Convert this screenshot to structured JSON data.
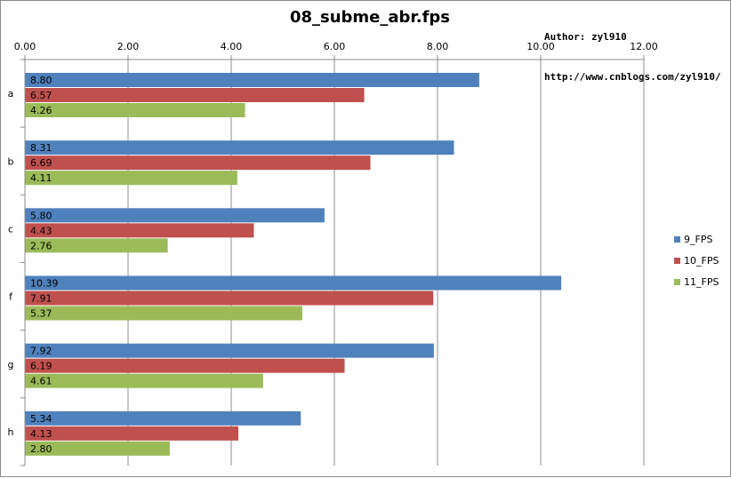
{
  "header": {
    "author": "Author: zyl910",
    "url": "http://www.cnblogs.com/zyl910/"
  },
  "chart_data": {
    "type": "bar",
    "orientation": "horizontal",
    "title": "08_subme_abr.fps",
    "categories": [
      "a",
      "b",
      "c",
      "f",
      "g",
      "h"
    ],
    "series": [
      {
        "name": "9_FPS",
        "color": "#4f81bd",
        "values": [
          8.8,
          8.31,
          5.8,
          10.39,
          7.92,
          5.34
        ]
      },
      {
        "name": "10_FPS",
        "color": "#c0504d",
        "values": [
          6.57,
          6.69,
          4.43,
          7.91,
          6.19,
          4.13
        ]
      },
      {
        "name": "11_FPS",
        "color": "#9bbb59",
        "values": [
          4.26,
          4.11,
          2.76,
          5.37,
          4.61,
          2.8
        ]
      }
    ],
    "value_labels": [
      [
        "8.80",
        "8.31",
        "5.80",
        "10.39",
        "7.92",
        "5.34"
      ],
      [
        "6.57",
        "6.69",
        "4.43",
        "7.91",
        "6.19",
        "4.13"
      ],
      [
        "4.26",
        "4.11",
        "2.76",
        "5.37",
        "4.61",
        "2.80"
      ]
    ],
    "xlim": [
      0,
      12
    ],
    "x_ticks": [
      "0.00",
      "2.00",
      "4.00",
      "6.00",
      "8.00",
      "10.00",
      "12.00"
    ],
    "x_axis_position": "top",
    "grid": true,
    "legend_position": "right",
    "xlabel": "",
    "ylabel": ""
  }
}
